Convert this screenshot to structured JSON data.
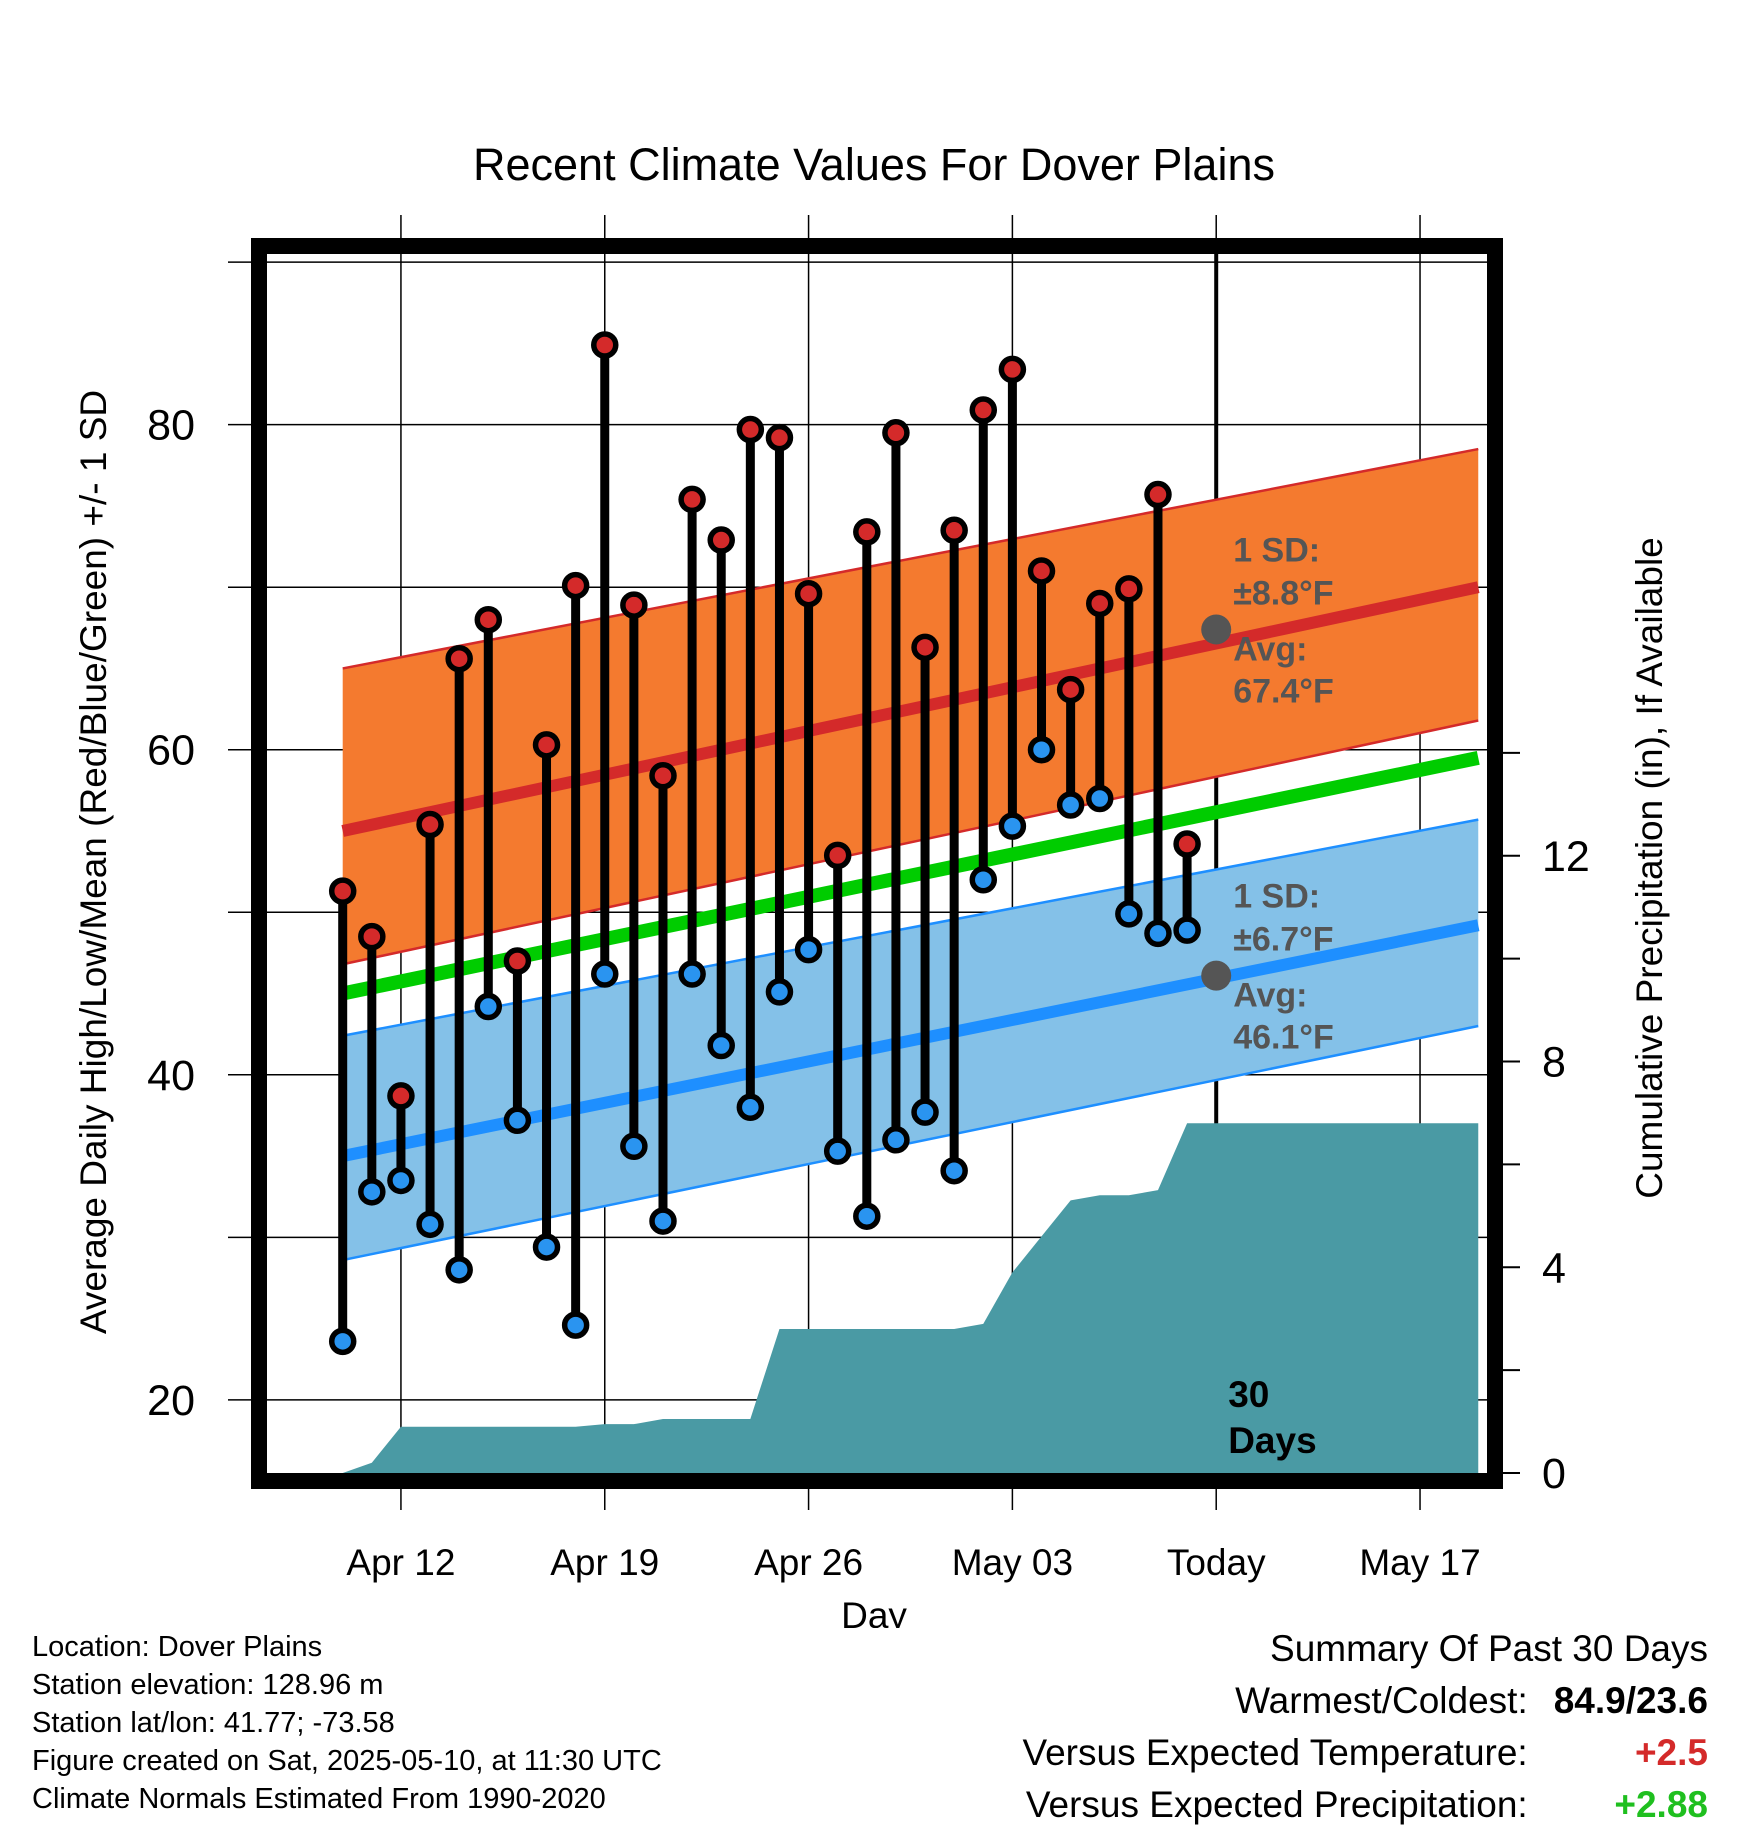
{
  "chart_data": {
    "type": "line",
    "title": "Recent Climate Values For Dover Plains",
    "xlabel": "Day",
    "ylabel": "Average Daily High/Low/Mean (Red/Blue/Green) +/- 1 SD",
    "y2label": "Cumulative Precipitation (in), If Available",
    "ylim": [
      15.5,
      90.5
    ],
    "y2lim": [
      0,
      23.7
    ],
    "xlim": [
      -4.6,
      37.3
    ],
    "yticks": [
      "20",
      "40",
      "60",
      "80"
    ],
    "y2ticks": [
      "0",
      "4",
      "8",
      "12"
    ],
    "xtick_labels": [
      "Apr 12",
      "Apr 19",
      "Apr 26",
      "May 03",
      "Today",
      "May 17"
    ],
    "xtick_offsets": [
      0,
      7,
      14,
      21,
      28,
      35
    ],
    "grid": true,
    "today_marker_label": [
      "30",
      "Days"
    ],
    "days": [
      -2,
      -1,
      0,
      1,
      2,
      3,
      4,
      5,
      6,
      7,
      8,
      9,
      10,
      11,
      12,
      13,
      14,
      15,
      16,
      17,
      18,
      19,
      20,
      21,
      22,
      23,
      24,
      25,
      26,
      27
    ],
    "highs": [
      51.3,
      48.5,
      38.7,
      55.4,
      65.6,
      68.0,
      47.0,
      60.3,
      70.1,
      84.9,
      68.9,
      58.4,
      75.4,
      72.9,
      79.7,
      79.2,
      69.6,
      53.5,
      73.4,
      79.5,
      66.3,
      73.5,
      80.9,
      83.4,
      71.0,
      63.7,
      69.0,
      69.9,
      75.7,
      54.2
    ],
    "lows": [
      23.6,
      32.8,
      33.5,
      30.8,
      28.0,
      44.2,
      37.2,
      29.4,
      24.6,
      46.2,
      35.6,
      31.0,
      46.2,
      41.8,
      38.0,
      45.1,
      47.7,
      35.3,
      31.3,
      36.0,
      37.7,
      34.1,
      52.0,
      55.3,
      60.0,
      56.6,
      57.0,
      49.9,
      48.7,
      48.9
    ],
    "normal_days": [
      -2,
      37
    ],
    "normal_high": [
      55.0,
      70.0
    ],
    "normal_high_sd_upper": [
      65.0,
      78.5
    ],
    "normal_high_sd_lower": [
      46.8,
      61.8
    ],
    "normal_low": [
      35.0,
      49.2
    ],
    "normal_low_sd_upper": [
      42.4,
      55.7
    ],
    "normal_low_sd_lower": [
      28.6,
      43.0
    ],
    "normal_mean": [
      45.0,
      59.5
    ],
    "precip_days": [
      -2,
      -1,
      0,
      1,
      2,
      3,
      4,
      5,
      6,
      7,
      8,
      9,
      10,
      11,
      12,
      13,
      14,
      15,
      16,
      17,
      18,
      19,
      20,
      21,
      22,
      23,
      24,
      25,
      26,
      27,
      28,
      37
    ],
    "cum_precip": [
      0.0,
      0.2,
      0.9,
      0.9,
      0.9,
      0.9,
      0.9,
      0.9,
      0.9,
      0.95,
      0.95,
      1.05,
      1.05,
      1.05,
      1.05,
      2.8,
      2.8,
      2.8,
      2.8,
      2.8,
      2.8,
      2.8,
      2.9,
      3.9,
      4.6,
      5.3,
      5.4,
      5.4,
      5.5,
      6.8,
      6.8,
      6.8
    ],
    "annotations": {
      "high": {
        "l1": "1 SD:",
        "l2": "±8.8°F",
        "l3": "Avg:",
        "l4": "67.4°F",
        "avg_value": 67.4
      },
      "low": {
        "l1": "1 SD:",
        "l2": "±6.7°F",
        "l3": "Avg:",
        "l4": "46.1°F",
        "avg_value": 46.1
      }
    },
    "colors": {
      "high_band": "#f47a2f",
      "high_line": "#d42a2a",
      "low_band": "#84c1e8",
      "low_line": "#1e8fff",
      "mean_line": "#00cc00",
      "precip_fill": "#4a9aa4",
      "high_marker": "#d42a2a",
      "low_marker": "#2a94f0",
      "annotation_text": "#555555",
      "avg_marker": "#555555"
    }
  },
  "footer": {
    "location": "Location: Dover Plains",
    "elevation": "Station elevation: 128.96 m",
    "latlon": "Station lat/lon: 41.77; -73.58",
    "created": "Figure created on Sat, 2025-05-10, at 11:30 UTC",
    "normals": "Climate Normals Estimated From 1990-2020"
  },
  "summary": {
    "heading": "Summary Of Past 30 Days",
    "warmest_label": "Warmest/Coldest:",
    "warmest_value": "84.9/23.6",
    "temp_label": "Versus Expected Temperature:",
    "temp_value": "+2.5",
    "temp_color": "#d42a2a",
    "precip_label": "Versus Expected Precipitation:",
    "precip_value": "+2.88",
    "precip_color": "#1fbf1f"
  }
}
